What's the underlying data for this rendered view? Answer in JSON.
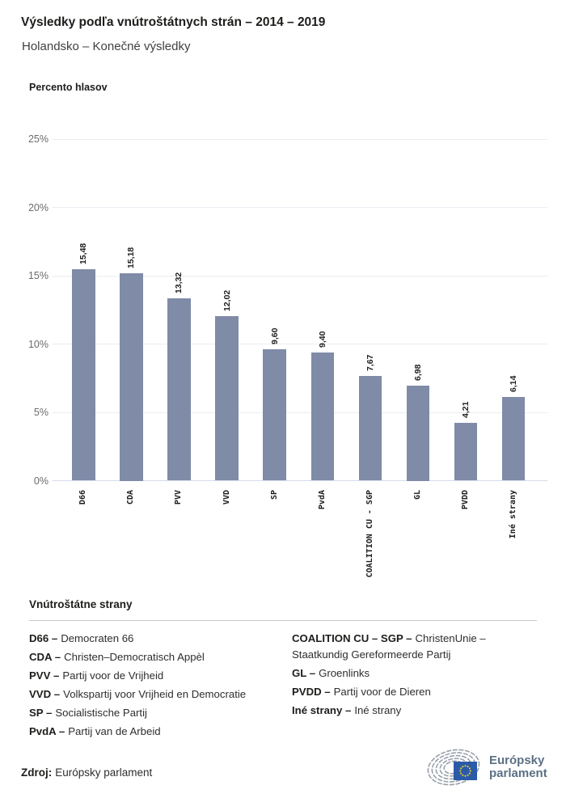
{
  "header": {
    "title": "Výsledky podľa vnútroštátnych strán – 2014 – 2019",
    "subtitle": "Holandsko – Konečné výsledky"
  },
  "chart_data": {
    "type": "bar",
    "title": "Percento hlasov",
    "ylabel": "Percento hlasov",
    "categories": [
      "D66",
      "CDA",
      "PVV",
      "VVD",
      "SP",
      "PvdA",
      "COALITION CU - SGP",
      "GL",
      "PVDD",
      "Iné strany"
    ],
    "values": [
      15.48,
      15.18,
      13.32,
      12.02,
      9.6,
      9.4,
      7.67,
      6.98,
      4.21,
      6.14
    ],
    "value_labels": [
      "15,48",
      "15,18",
      "13,32",
      "12,02",
      "9,60",
      "9,40",
      "7,67",
      "6,98",
      "4,21",
      "6,14"
    ],
    "ylim": [
      0,
      25
    ],
    "yticks": [
      0,
      5,
      10,
      15,
      20,
      25
    ],
    "ytick_labels": [
      "0%",
      "5%",
      "10%",
      "15%",
      "20%",
      "25%"
    ],
    "grid": true,
    "legend_position": "none",
    "bar_color": "#7f8ba7"
  },
  "legend": {
    "heading": "Vnútroštátne strany",
    "columns": [
      {
        "items": [
          {
            "abbr_label": "D66 –",
            "name": "Democraten 66"
          },
          {
            "abbr_label": "CDA –",
            "name": "Christen–Democratisch Appèl"
          },
          {
            "abbr_label": "PVV –",
            "name": "Partij voor de Vrijheid"
          },
          {
            "abbr_label": "VVD –",
            "name": "Volkspartij voor Vrijheid en Democratie"
          },
          {
            "abbr_label": "SP –",
            "name": "Socialistische Partij"
          },
          {
            "abbr_label": "PvdA –",
            "name": "Partij van de Arbeid"
          }
        ]
      },
      {
        "items": [
          {
            "abbr_label": "COALITION CU – SGP –",
            "name": "ChristenUnie – Staatkundig Gereformeerde Partij"
          },
          {
            "abbr_label": "GL –",
            "name": "Groenlinks"
          },
          {
            "abbr_label": "PVDD –",
            "name": "Partij voor de Dieren"
          },
          {
            "abbr_label": "Iné strany –",
            "name": "Iné strany"
          }
        ]
      }
    ]
  },
  "footer": {
    "source_label": "Zdroj:",
    "source_value": "Európsky parlament",
    "logo": {
      "text_line1": "Európsky",
      "text_line2": "parlament",
      "flag_color": "#2b5ba8",
      "star_color": "#ffd617",
      "arc_color": "#99a0aa",
      "text_color": "#5b7084"
    }
  }
}
